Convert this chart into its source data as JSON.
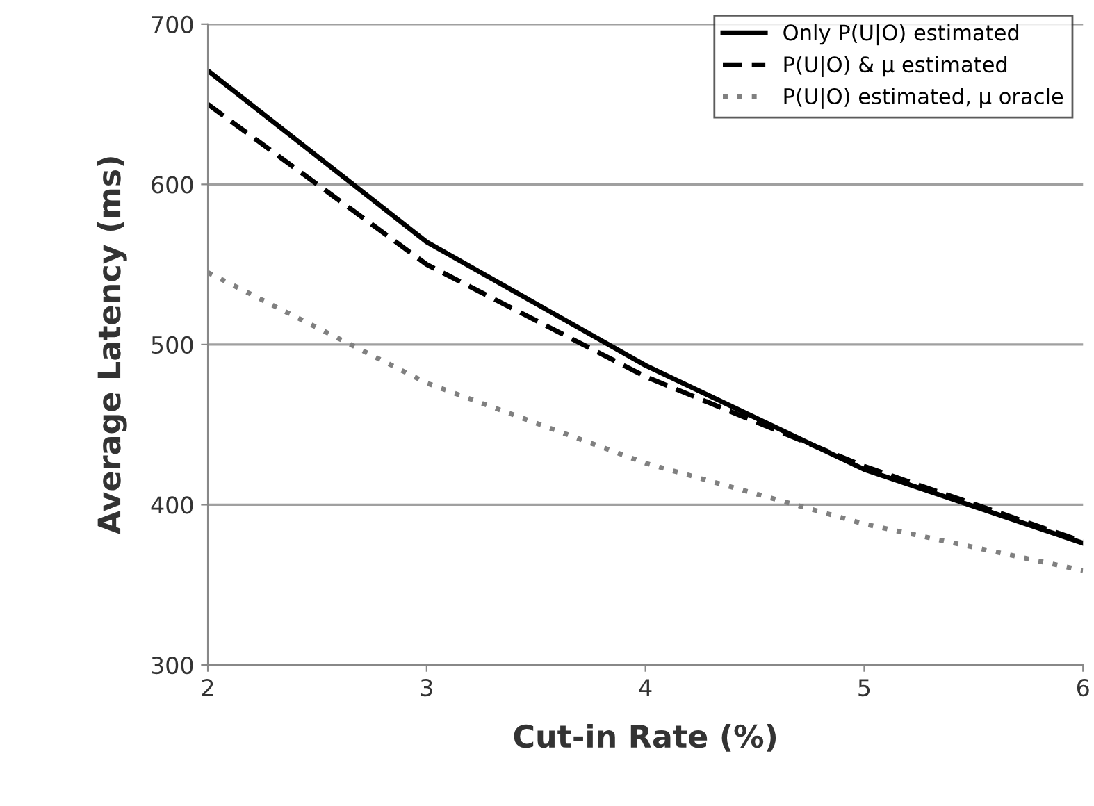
{
  "chart_data": {
    "type": "line",
    "xlabel": "Cut-in Rate (%)",
    "ylabel": "Average Latency (ms)",
    "x": [
      2,
      3,
      4,
      5,
      6
    ],
    "series": [
      {
        "name": "Only P(U|O) estimated",
        "color": "#000000",
        "line_style": "solid",
        "values": [
          671,
          564,
          487,
          422,
          376
        ]
      },
      {
        "name": "P(U|O) & μ estimated",
        "color": "#000000",
        "line_style": "dashed",
        "values": [
          650,
          550,
          480,
          424,
          377
        ]
      },
      {
        "name": "P(U|O) estimated, μ oracle",
        "color": "#808080",
        "line_style": "dotted",
        "values": [
          545,
          476,
          426,
          388,
          359
        ]
      }
    ],
    "xlim": [
      2,
      6
    ],
    "xticks": [
      2,
      3,
      4,
      5,
      6
    ],
    "ylim": [
      300,
      700
    ],
    "yticks": [
      300,
      400,
      500,
      600,
      700
    ],
    "grid": "y",
    "legend": "top right",
    "marker": "none"
  }
}
